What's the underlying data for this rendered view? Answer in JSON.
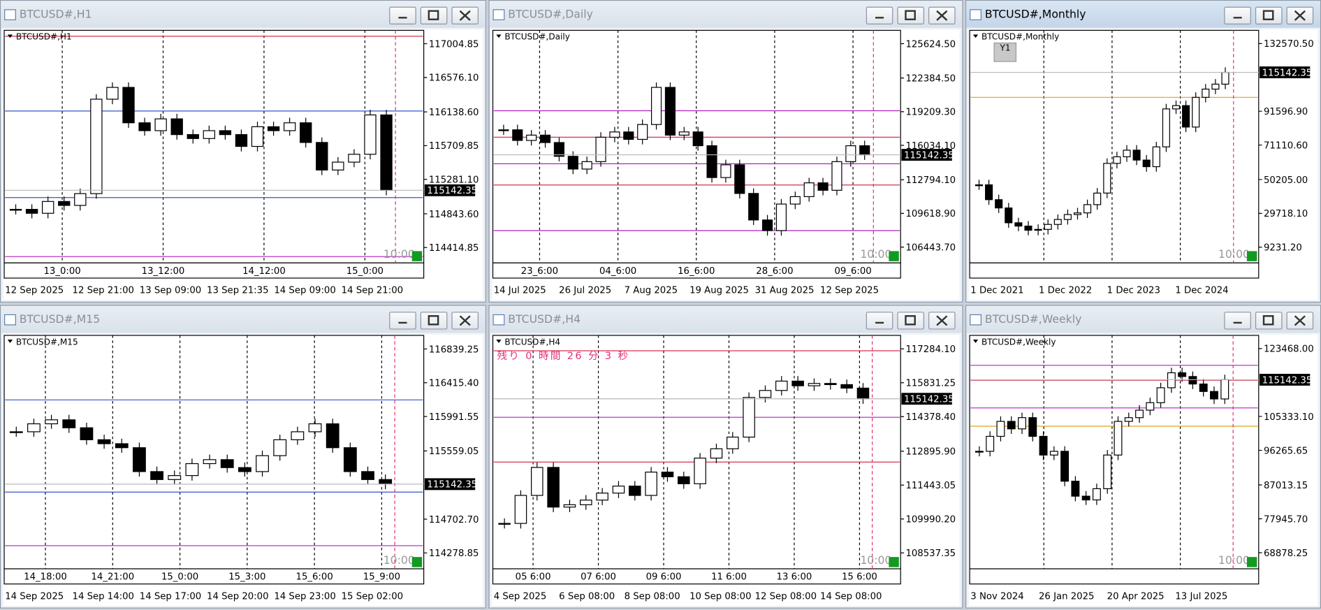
{
  "windows": [
    {
      "title": "BTCUSD#,H1",
      "label": "BTCUSD#,H1",
      "active": false,
      "current_price": 115142.35,
      "timer": "10:00",
      "ylim": [
        114230,
        117175
      ],
      "yticks": [
        {
          "value": 117004.85,
          "label": "117004.85"
        },
        {
          "value": 116576.1,
          "label": "116576.10"
        },
        {
          "value": 116138.6,
          "label": "116138.60"
        },
        {
          "value": 115709.85,
          "label": "115709.85"
        },
        {
          "value": 115281.1,
          "label": "115281.10"
        },
        {
          "value": 114843.6,
          "label": "114843.60"
        },
        {
          "value": 114414.85,
          "label": "114414.85"
        }
      ],
      "levels": [
        {
          "price": 117100,
          "color": "#d8304a"
        },
        {
          "price": 116150,
          "color": "#3355cc"
        },
        {
          "price": 115050,
          "color": "#3355cc"
        },
        {
          "price": 114300,
          "color": "#b020c0"
        }
      ],
      "closes": [
        114900,
        114850,
        115000,
        114950,
        115100,
        116300,
        116450,
        116000,
        115900,
        116050,
        115850,
        115800,
        115900,
        115850,
        115700,
        115950,
        115900,
        116000,
        115750,
        115400,
        115500,
        115600,
        116100,
        115142.35
      ],
      "inner_time_labels": [
        "13_0:00",
        "13_12:00",
        "14_12:00",
        "15_0:00"
      ],
      "time_labels": [
        "12 Sep 2025",
        "12 Sep 21:00",
        "13 Sep 09:00",
        "13 Sep 21:35",
        "14 Sep 09:00",
        "14 Sep 21:00"
      ]
    },
    {
      "title": "BTCUSD#,Daily",
      "label": "BTCUSD#,Daily",
      "active": false,
      "current_price": 115142.35,
      "timer": "10:00",
      "ylim": [
        105030,
        126880
      ],
      "yticks": [
        {
          "value": 125624.5,
          "label": "125624.50"
        },
        {
          "value": 122384.5,
          "label": "122384.50"
        },
        {
          "value": 119209.3,
          "label": "119209.30"
        },
        {
          "value": 116034.1,
          "label": "116034.10"
        },
        {
          "value": 112794.1,
          "label": "112794.10"
        },
        {
          "value": 109618.9,
          "label": "109618.90"
        },
        {
          "value": 106443.7,
          "label": "106443.70"
        }
      ],
      "levels": [
        {
          "price": 119300,
          "color": "#b020c0"
        },
        {
          "price": 116800,
          "color": "#d8304a"
        },
        {
          "price": 114300,
          "color": "#b020c0"
        },
        {
          "price": 112300,
          "color": "#d8304a"
        },
        {
          "price": 108000,
          "color": "#b020c0"
        }
      ],
      "closes": [
        117500,
        116500,
        117000,
        116300,
        115000,
        113800,
        114500,
        116800,
        117300,
        116600,
        118000,
        121500,
        117000,
        117300,
        116000,
        113000,
        114200,
        111500,
        109000,
        108000,
        110500,
        111200,
        112500,
        111800,
        114500,
        116000,
        115142.35
      ],
      "inner_time_labels": [
        "23_6:00",
        "04_6:00",
        "16_6:00",
        "28_6:00",
        "09_6:00"
      ],
      "time_labels": [
        "14 Jul 2025",
        "26 Jul 2025",
        "7 Aug 2025",
        "19 Aug 2025",
        "31 Aug 2025",
        "12 Sep 2025"
      ]
    },
    {
      "title": "BTCUSD#,Monthly",
      "label": "BTCUSD#,Monthly",
      "active": true,
      "current_price": 115142.35,
      "timer": "10:00",
      "button": "Y1",
      "ylim": [
        200,
        140600
      ],
      "yticks": [
        {
          "value": 132570.5,
          "label": "132570.50"
        },
        {
          "value": 91596.9,
          "label": "91596.90"
        },
        {
          "value": 71110.6,
          "label": "71110.60"
        },
        {
          "value": 50205.0,
          "label": "50205.00"
        },
        {
          "value": 29718.1,
          "label": "29718.10"
        },
        {
          "value": 9231.2,
          "label": "9231.20"
        }
      ],
      "levels": [
        {
          "price": 100000,
          "color": "#e0a020"
        }
      ],
      "closes": [
        47000,
        38000,
        33000,
        24000,
        22000,
        19500,
        20000,
        23000,
        26000,
        29000,
        30000,
        35000,
        42000,
        60000,
        64000,
        68000,
        62000,
        58000,
        70000,
        93000,
        95000,
        82000,
        100000,
        105000,
        108000,
        115142.35
      ],
      "inner_time_labels": [],
      "time_labels": [
        "1 Dec 2021",
        "1 Dec 2022",
        "1 Dec 2023",
        "1 Dec 2024"
      ]
    },
    {
      "title": "BTCUSD#,M15",
      "label": "BTCUSD#,M15",
      "active": false,
      "current_price": 115142.35,
      "timer": "10:00",
      "ylim": [
        114090,
        117010
      ],
      "yticks": [
        {
          "value": 116839.25,
          "label": "116839.25"
        },
        {
          "value": 116415.4,
          "label": "116415.40"
        },
        {
          "value": 115991.55,
          "label": "115991.55"
        },
        {
          "value": 115559.05,
          "label": "115559.05"
        },
        {
          "value": 114702.7,
          "label": "114702.70"
        },
        {
          "value": 114278.85,
          "label": "114278.85"
        }
      ],
      "levels": [
        {
          "price": 116200,
          "color": "#3355cc"
        },
        {
          "price": 115043,
          "color": "#3355cc"
        },
        {
          "price": 114370,
          "color": "#b020c0"
        }
      ],
      "closes": [
        115800,
        115900,
        115950,
        115850,
        115700,
        115650,
        115600,
        115300,
        115200,
        115250,
        115400,
        115450,
        115350,
        115300,
        115500,
        115700,
        115800,
        115900,
        115600,
        115300,
        115200,
        115142.35
      ],
      "inner_time_labels": [
        "14_18:00",
        "14_21:00",
        "15_0:00",
        "15_3:00",
        "15_6:00",
        "15_9:00"
      ],
      "time_labels": [
        "14 Sep 2025",
        "14 Sep 14:00",
        "14 Sep 17:00",
        "14 Sep 20:00",
        "14 Sep 23:00",
        "15 Sep 02:00"
      ]
    },
    {
      "title": "BTCUSD#,H4",
      "label": "BTCUSD#,H4",
      "active": false,
      "current_price": 115142.35,
      "timer": "10:00",
      "countdown": "残り 0 時間 26 分 3 秒",
      "ylim": [
        107890,
        117860
      ],
      "yticks": [
        {
          "value": 117284.1,
          "label": "117284.10"
        },
        {
          "value": 115831.25,
          "label": "115831.25"
        },
        {
          "value": 114378.4,
          "label": "114378.40"
        },
        {
          "value": 112895.9,
          "label": "112895.90"
        },
        {
          "value": 111443.05,
          "label": "111443.05"
        },
        {
          "value": 109990.2,
          "label": "109990.20"
        },
        {
          "value": 108537.35,
          "label": "108537.35"
        }
      ],
      "levels": [
        {
          "price": 117200,
          "color": "#d8304a"
        },
        {
          "price": 114350,
          "color": "#b020c0"
        },
        {
          "price": 112430,
          "color": "#d8304a"
        }
      ],
      "closes": [
        109800,
        111000,
        112200,
        110500,
        110600,
        110800,
        111100,
        111400,
        111000,
        112000,
        111800,
        111500,
        112600,
        113000,
        113500,
        115200,
        115500,
        115900,
        115700,
        115800,
        115750,
        115600,
        115142.35
      ],
      "inner_time_labels": [
        "05 6:00",
        "07 6:00",
        "09 6:00",
        "11 6:00",
        "13 6:00",
        "15 6:00"
      ],
      "time_labels": [
        "4 Sep 2025",
        "6 Sep 08:00",
        "8 Sep 08:00",
        "10 Sep 08:00",
        "12 Sep 08:00",
        "14 Sep 08:00"
      ]
    },
    {
      "title": "BTCUSD#,Weekly",
      "label": "BTCUSD#,Weekly",
      "active": false,
      "current_price": 115142.35,
      "timer": "10:00",
      "ylim": [
        64800,
        127000
      ],
      "yticks": [
        {
          "value": 123468.0,
          "label": "123468.00"
        },
        {
          "value": 105333.1,
          "label": "105333.10"
        },
        {
          "value": 96265.65,
          "label": "96265.65"
        },
        {
          "value": 87013.15,
          "label": "87013.15"
        },
        {
          "value": 77945.7,
          "label": "77945.70"
        },
        {
          "value": 68878.25,
          "label": "68878.25"
        }
      ],
      "levels": [
        {
          "price": 119000,
          "color": "#b020c0"
        },
        {
          "price": 115000,
          "color": "#d8304a"
        },
        {
          "price": 107600,
          "color": "#b020c0"
        },
        {
          "price": 102700,
          "color": "#e0a020"
        }
      ],
      "closes": [
        96000,
        100000,
        104000,
        102000,
        105000,
        100000,
        95000,
        96000,
        88000,
        84000,
        83000,
        86000,
        95000,
        104000,
        105000,
        107000,
        109000,
        113000,
        117000,
        116000,
        114000,
        112000,
        110000,
        115142.35
      ],
      "inner_time_labels": [],
      "time_labels": [
        "3 Nov 2024",
        "26 Jan 2025",
        "20 Apr 2025",
        "13 Jul 2025"
      ]
    }
  ]
}
